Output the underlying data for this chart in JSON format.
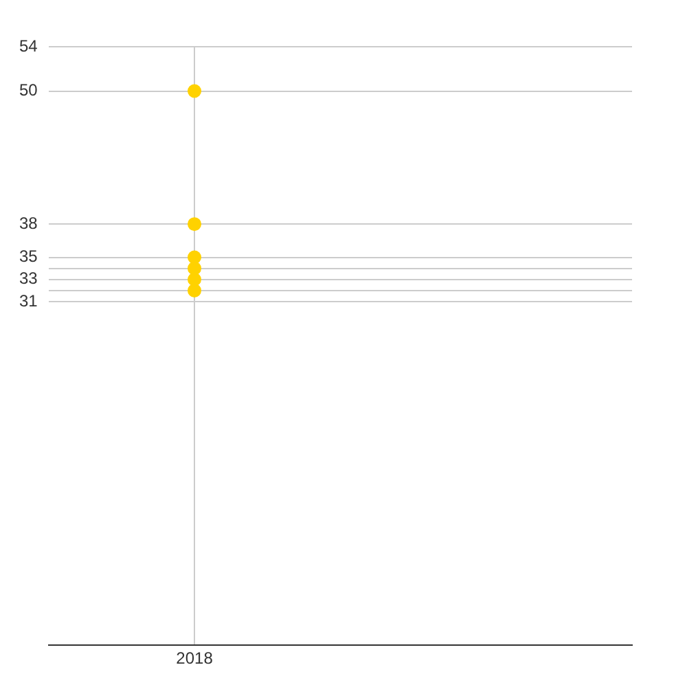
{
  "chart_data": {
    "type": "scatter",
    "categories": [
      null,
      "2018",
      null,
      null,
      null
    ],
    "series": [
      {
        "color": "#ffd200",
        "values": [
          null,
          50,
          null,
          null,
          null
        ]
      },
      {
        "color": "#ffd200",
        "values": [
          null,
          38,
          null,
          null,
          null
        ]
      },
      {
        "color": "#ffd200",
        "values": [
          null,
          35,
          null,
          null,
          null
        ]
      },
      {
        "color": "#ffd200",
        "values": [
          null,
          34,
          null,
          null,
          null
        ]
      },
      {
        "color": "#ffd200",
        "values": [
          null,
          33,
          null,
          null,
          null
        ]
      },
      {
        "color": "#ffd200",
        "values": [
          null,
          32,
          null,
          null,
          null
        ]
      }
    ],
    "ylim": [
      0,
      54
    ],
    "yticks": [
      31,
      {
        "value": 32,
        "label": null
      },
      33,
      {
        "value": 34,
        "label": null
      },
      35,
      38,
      50,
      54
    ],
    "grid": true,
    "legend": false,
    "marker": "circle"
  }
}
